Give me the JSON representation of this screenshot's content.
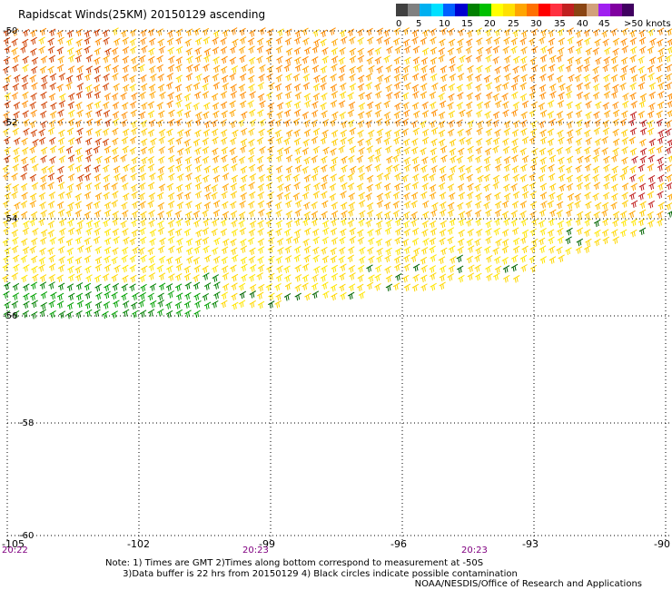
{
  "header": {
    "title": "Rapidscat Winds(25KM) 20150129 ascending"
  },
  "legend": {
    "colors": [
      "#404040",
      "#808080",
      "#00b0f0",
      "#00e0ff",
      "#0060ff",
      "#0000d0",
      "#008000",
      "#00c000",
      "#ffff00",
      "#ffe000",
      "#ffa500",
      "#ff7000",
      "#ff0000",
      "#ff3040",
      "#c02020",
      "#8b4513",
      "#d2a07a",
      "#a020f0",
      "#8000a0",
      "#400060"
    ],
    "labels": [
      "0",
      "5",
      "10",
      "15",
      "20",
      "25",
      "30",
      "35",
      "40",
      "45",
      ">50 knots"
    ]
  },
  "map": {
    "lat_labels": [
      "-50",
      "-52",
      "-54",
      "-56",
      "-58",
      "-60"
    ],
    "lon_labels": [
      "-105",
      "-102",
      "-99",
      "-96",
      "-93",
      "-90"
    ],
    "time_labels": [
      "20:22",
      "20:23",
      "20:23"
    ]
  },
  "footer": {
    "notes": "Note: 1) Times are GMT 2)Times along bottom correspond to measurement at -50S\n      3)Data buffer is 22 hrs from 20150129 4) Black circles indicate possible contamination",
    "credit": "NOAA/NESDIS/Office of Research and Applications"
  }
}
